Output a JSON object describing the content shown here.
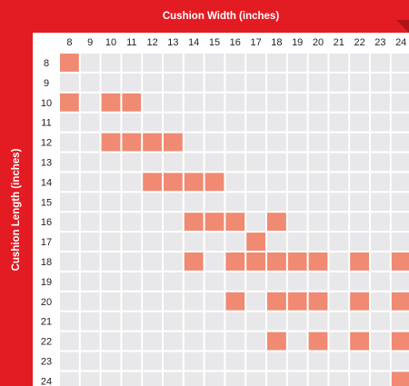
{
  "chart_data": {
    "type": "heatmap",
    "title": "",
    "xlabel": "Cushion Width (inches)",
    "ylabel": "Cushion Length (inches)",
    "x_categories": [
      8,
      9,
      10,
      11,
      12,
      13,
      14,
      15,
      16,
      17,
      18,
      19,
      20,
      21,
      22,
      23,
      24
    ],
    "y_categories": [
      8,
      9,
      10,
      11,
      12,
      13,
      14,
      15,
      16,
      17,
      18,
      19,
      20,
      21,
      22,
      23,
      24
    ],
    "available_sizes": [
      {
        "length": 8,
        "widths": [
          8
        ]
      },
      {
        "length": 10,
        "widths": [
          8,
          10,
          11
        ]
      },
      {
        "length": 12,
        "widths": [
          10,
          11,
          12,
          13
        ]
      },
      {
        "length": 14,
        "widths": [
          12,
          13,
          14,
          15
        ]
      },
      {
        "length": 16,
        "widths": [
          14,
          15,
          16,
          18
        ]
      },
      {
        "length": 17,
        "widths": [
          17
        ]
      },
      {
        "length": 18,
        "widths": [
          14,
          16,
          17,
          18,
          19,
          20,
          22,
          24
        ]
      },
      {
        "length": 20,
        "widths": [
          16,
          18,
          19,
          20,
          22,
          24
        ]
      },
      {
        "length": 22,
        "widths": [
          18,
          20,
          22,
          24
        ]
      },
      {
        "length": 24,
        "widths": [
          24
        ]
      }
    ],
    "grid": true,
    "colors": {
      "band": "#e31b23",
      "filled_cell": "#f08a72",
      "empty_cell": "#e8e8ea"
    }
  }
}
